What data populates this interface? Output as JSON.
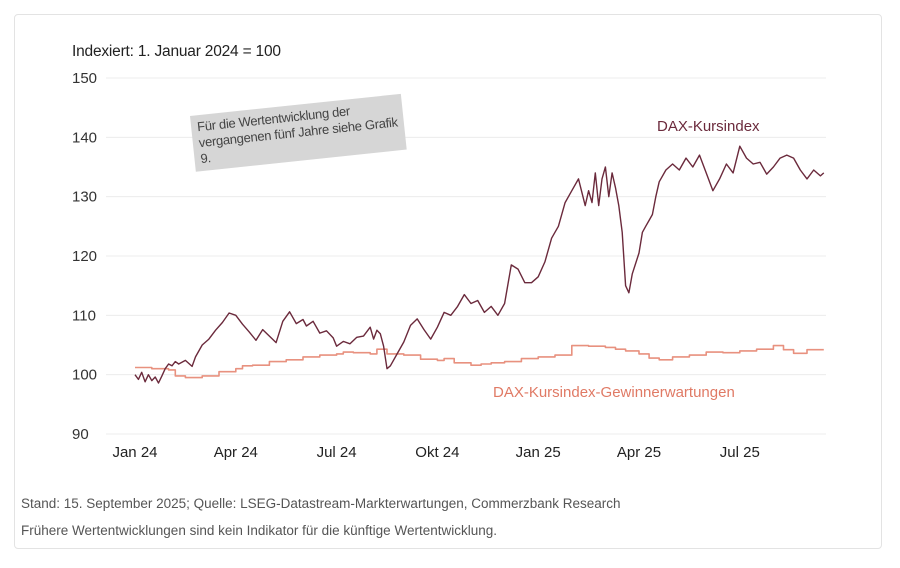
{
  "subtitle": "Indexiert: 1. Januar 2024 = 100",
  "note": "Für die Wertentwicklung der vergangenen fünf Jahre siehe Grafik 9.",
  "footer": {
    "source": "Stand: 15. September 2025; Quelle: LSEG-Datastream-Markterwartungen, Commerzbank Research",
    "disclaimer": "Frühere Wertentwicklungen sind kein Indikator für die künftige Wertentwicklung."
  },
  "chart_data": {
    "type": "line",
    "title": "",
    "subtitle": "Indexiert: 1. Januar 2024 = 100",
    "xlabel": "",
    "ylabel": "",
    "ylim": [
      90,
      150
    ],
    "yticks": [
      90,
      100,
      110,
      120,
      130,
      140,
      150
    ],
    "xticks": [
      "Jan 24",
      "Apr 24",
      "Jul 24",
      "Okt 24",
      "Jan 25",
      "Apr 25",
      "Jul 25"
    ],
    "x_unit": "months since 1 Jan 2024",
    "xlim": [
      0,
      20.5
    ],
    "grid": true,
    "legend": "inline labels",
    "series": [
      {
        "name": "DAX-Kursindex",
        "color": "#6b2a3c",
        "label_position": "top-right",
        "x": [
          0,
          0.1,
          0.2,
          0.3,
          0.4,
          0.5,
          0.6,
          0.7,
          0.8,
          0.9,
          1.0,
          1.1,
          1.2,
          1.3,
          1.5,
          1.7,
          1.8,
          2.0,
          2.2,
          2.4,
          2.6,
          2.8,
          3.0,
          3.2,
          3.4,
          3.6,
          3.8,
          4.0,
          4.2,
          4.4,
          4.6,
          4.8,
          5.0,
          5.1,
          5.3,
          5.5,
          5.7,
          5.9,
          6.0,
          6.2,
          6.4,
          6.6,
          6.8,
          7.0,
          7.1,
          7.2,
          7.3,
          7.4,
          7.5,
          7.6,
          7.8,
          8.0,
          8.2,
          8.4,
          8.6,
          8.8,
          9.0,
          9.2,
          9.4,
          9.6,
          9.8,
          10.0,
          10.2,
          10.4,
          10.6,
          10.8,
          11.0,
          11.2,
          11.4,
          11.6,
          11.8,
          12.0,
          12.2,
          12.4,
          12.6,
          12.8,
          13.0,
          13.2,
          13.4,
          13.5,
          13.6,
          13.7,
          13.8,
          13.9,
          14.0,
          14.1,
          14.2,
          14.3,
          14.4,
          14.5,
          14.6,
          14.7,
          14.8,
          15.0,
          15.1,
          15.2,
          15.3,
          15.4,
          15.5,
          15.6,
          15.8,
          16.0,
          16.2,
          16.4,
          16.6,
          16.8,
          17.0,
          17.2,
          17.4,
          17.6,
          17.8,
          18.0,
          18.2,
          18.4,
          18.6,
          18.8,
          19.0,
          19.2,
          19.4,
          19.6,
          19.8,
          20.0,
          20.2,
          20.4,
          20.5
        ],
        "values": [
          100,
          99.2,
          100.4,
          98.8,
          100,
          99,
          99.6,
          98.6,
          99.8,
          101,
          101.8,
          101.5,
          102.2,
          101.8,
          102.4,
          101.4,
          103,
          105,
          106,
          107.5,
          108.8,
          110.4,
          110,
          108.5,
          107.2,
          105.8,
          107.6,
          106.5,
          105.4,
          109,
          110.6,
          108.6,
          109.3,
          108.2,
          109,
          107,
          107.4,
          106.2,
          104.8,
          105.6,
          105.2,
          106.3,
          106.5,
          108,
          106,
          107.5,
          106.9,
          104.8,
          101,
          101.5,
          103.5,
          105.5,
          108.3,
          109.4,
          107.6,
          106,
          108,
          110.5,
          110,
          111.5,
          113.5,
          112,
          112.5,
          110.5,
          111.5,
          110,
          112,
          118.5,
          117.8,
          115.5,
          115.5,
          116.5,
          119,
          123,
          125,
          129,
          131,
          133,
          128.5,
          131,
          129,
          134,
          128.5,
          133,
          135,
          130,
          134,
          131.5,
          128.5,
          124,
          115,
          113.8,
          117,
          120.5,
          124,
          125,
          126,
          127,
          130,
          132.5,
          134.5,
          135.5,
          134.5,
          136.5,
          135,
          137,
          134,
          131,
          133,
          135.5,
          134,
          138.5,
          136.5,
          135.5,
          135.8,
          133.8,
          135,
          136.5,
          137,
          136.5,
          134.5,
          133,
          134.5,
          133.5,
          134
        ]
      },
      {
        "name": "DAX-Kursindex-Gewinnerwartungen",
        "color": "#e8917f",
        "label_position": "bottom-right",
        "x": [
          0,
          0.5,
          1.0,
          1.2,
          1.5,
          2.0,
          2.5,
          3.0,
          3.2,
          3.5,
          4.0,
          4.5,
          5.0,
          5.5,
          6.0,
          6.2,
          6.5,
          7.0,
          7.2,
          7.5,
          8.0,
          8.5,
          9.0,
          9.2,
          9.5,
          10.0,
          10.3,
          10.6,
          11.0,
          11.5,
          12.0,
          12.5,
          13.0,
          13.5,
          14.0,
          14.3,
          14.6,
          15.0,
          15.3,
          15.6,
          16.0,
          16.5,
          17.0,
          17.5,
          18.0,
          18.5,
          19.0,
          19.3,
          19.6,
          20.0,
          20.5
        ],
        "values": [
          101.2,
          101,
          100.8,
          99.8,
          99.5,
          99.8,
          100.5,
          101,
          101.5,
          101.6,
          102.2,
          102.5,
          103,
          103.3,
          103.5,
          103.8,
          103.7,
          103.5,
          104.3,
          103.5,
          103.3,
          102.6,
          102.4,
          102.7,
          102,
          101.6,
          101.8,
          102,
          102.2,
          102.7,
          103,
          103.3,
          104.9,
          104.8,
          104.6,
          104.3,
          104,
          103.5,
          102.8,
          102.5,
          103,
          103.3,
          103.8,
          103.7,
          104,
          104.3,
          104.9,
          104.2,
          103.6,
          104.2,
          104.2
        ]
      }
    ]
  }
}
